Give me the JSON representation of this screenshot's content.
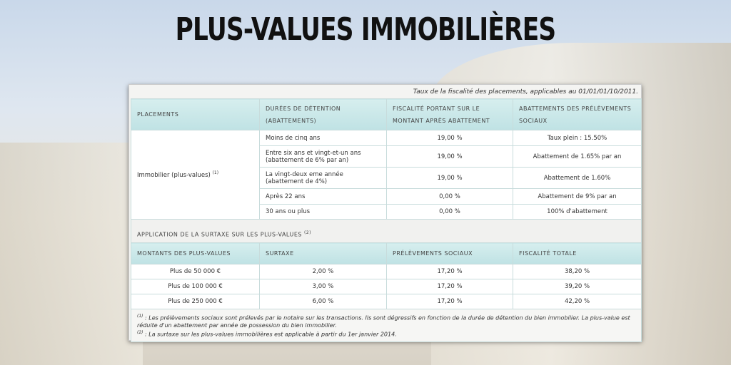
{
  "title": "PLUS-VALUES IMMOBILIÈRES",
  "caption": "Taux de la fiscalité des placements, applicables au 01/01/01/10/2011.",
  "table1": {
    "headers": [
      "PLACEMENTS",
      "DURÉES DE DÉTENTION (ABATTEMENTS)",
      "FISCALITÉ PORTANT SUR LE MONTANT APRÈS ABATTEMENT",
      "ABATTEMENTS DES PRÉLÈVEMENTS SOCIAUX"
    ],
    "placement": "Immobilier (plus-values)",
    "placement_note": "(1)",
    "rows": [
      {
        "duree": "Moins de cinq ans",
        "fiscalite": "19,00 %",
        "abattement": "Taux plein : 15.50%"
      },
      {
        "duree": "Entre six ans et vingt-et-un ans (abattement de 6% par an)",
        "fiscalite": "19,00 %",
        "abattement": "Abattement de 1.65% par an"
      },
      {
        "duree": "La vingt-deux eme année (abattement de 4%)",
        "fiscalite": "19,00 %",
        "abattement": "Abattement de 1.60%"
      },
      {
        "duree": "Après 22 ans",
        "fiscalite": "0,00 %",
        "abattement": "Abattement de 9% par an"
      },
      {
        "duree": "30 ans ou plus",
        "fiscalite": "0,00 %",
        "abattement": "100% d'abattement"
      }
    ]
  },
  "section": {
    "label": "APPLICATION DE LA SURTAXE SUR LES PLUS-VALUES",
    "note": "(2)"
  },
  "table2": {
    "headers": [
      "MONTANTS DES PLUS-VALUES",
      "SURTAXE",
      "PRÉLÈVEMENTS SOCIAUX",
      "FISCALITÉ TOTALE"
    ],
    "rows": [
      [
        "Plus de 50 000 €",
        "2,00 %",
        "17,20 %",
        "38,20 %"
      ],
      [
        "Plus de 100 000 €",
        "3,00 %",
        "17,20 %",
        "39,20 %"
      ],
      [
        "Plus de 250 000 €",
        "6,00 %",
        "17,20 %",
        "42,20 %"
      ]
    ]
  },
  "footnotes": {
    "n1_mark": "(1)",
    "n1": " : Les prélèvements sociaux sont prélevés par le notaire sur les transactions. Ils sont dégressifs en fonction de la durée de détention du bien immobilier. La plus-value est réduite d'un abattement par année de possession du bien immobilier.",
    "n2_mark": "(2)",
    "n2": " : La surtaxe sur les plus-values immobilières est applicable à partir du 1er janvier 2014."
  }
}
